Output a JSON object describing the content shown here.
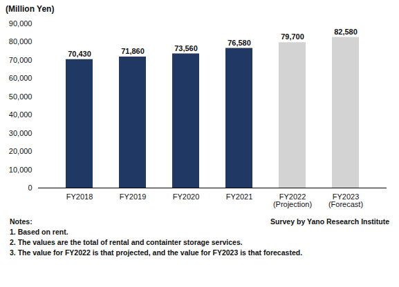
{
  "chart_data": {
    "type": "bar",
    "ylabel": "(Million Yen)",
    "categories": [
      "FY2018",
      "FY2019",
      "FY2020",
      "FY2021",
      "FY2022\n(Projection)",
      "FY2023\n(Forecast)"
    ],
    "values": [
      70430,
      71860,
      73560,
      76580,
      79700,
      82580
    ],
    "value_labels": [
      "70,430",
      "71,860",
      "73,560",
      "76,580",
      "79,700",
      "82,580"
    ],
    "colors": [
      "#1f3864",
      "#1f3864",
      "#1f3864",
      "#1f3864",
      "#d3d3d3",
      "#d3d3d3"
    ],
    "ylim": [
      0,
      90000
    ],
    "yticks": [
      0,
      {
        "value": 10000,
        "label": "10,000"
      },
      {
        "value": 20000,
        "label": "20,000"
      },
      {
        "value": 30000,
        "label": "30,000"
      },
      {
        "value": 40000,
        "label": "40,000"
      },
      {
        "value": 50000,
        "label": "50,000"
      },
      {
        "value": 60000,
        "label": "60,000"
      },
      {
        "value": 70000,
        "label": "70,000"
      },
      {
        "value": 80000,
        "label": "80,000"
      },
      {
        "value": 90000,
        "label": "90,000"
      }
    ],
    "data_labels": true,
    "grid": false,
    "annotations": [
      "Notes:",
      "Survey by Yano Research Institute",
      "1. Based on rent.",
      "2. The values are the total of rental and containter storage services.",
      "3. The value for FY2022 is that projected, and the value for FY2023 is that forecasted."
    ]
  }
}
